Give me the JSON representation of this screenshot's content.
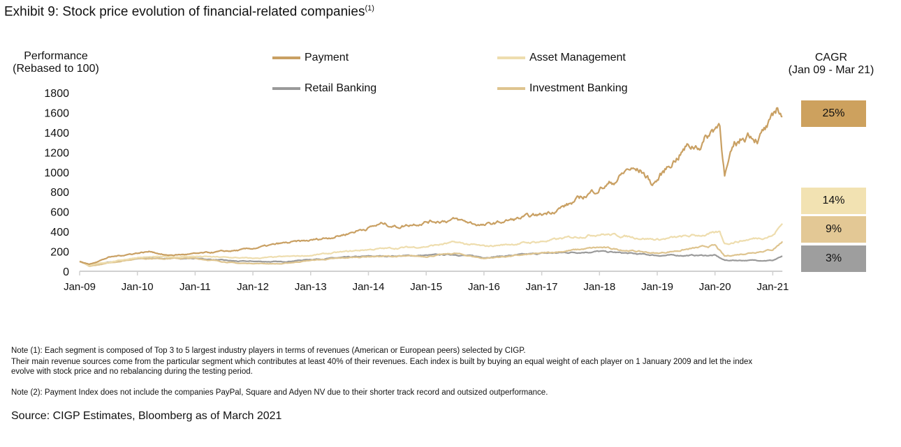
{
  "title": "Exhibit 9: Stock price evolution of financial-related companies",
  "title_footnote": "(1)",
  "chart_data": {
    "type": "line",
    "ylabel_line1": "Performance",
    "ylabel_line2": "(Rebased to 100)",
    "ylim": [
      0,
      1800
    ],
    "yticks": [
      "0",
      "200",
      "400",
      "600",
      "800",
      "1000",
      "1200",
      "1400",
      "1600",
      "1800"
    ],
    "xticks": [
      "Jan-09",
      "Jan-10",
      "Jan-11",
      "Jan-12",
      "Jan-13",
      "Jan-14",
      "Jan-15",
      "Jan-16",
      "Jan-17",
      "Jan-18",
      "Jan-19",
      "Jan-20",
      "Jan-21"
    ],
    "xlim": [
      "2009-01",
      "2021-03"
    ],
    "grid": false,
    "legend_position": "top",
    "series": [
      {
        "name": "Retail Banking",
        "color": "#9A9A9A",
        "points": [
          [
            "2009-01",
            100
          ],
          [
            "2009-03",
            60
          ],
          [
            "2010-01",
            130
          ],
          [
            "2011-01",
            130
          ],
          [
            "2011-10",
            100
          ],
          [
            "2012-01",
            100
          ],
          [
            "2012-07",
            95
          ],
          [
            "2013-01",
            120
          ],
          [
            "2014-01",
            150
          ],
          [
            "2015-01",
            160
          ],
          [
            "2015-07",
            170
          ],
          [
            "2016-01",
            140
          ],
          [
            "2017-01",
            180
          ],
          [
            "2018-01",
            200
          ],
          [
            "2019-01",
            160
          ],
          [
            "2020-01",
            160
          ],
          [
            "2020-03",
            110
          ],
          [
            "2021-01",
            110
          ],
          [
            "2021-03",
            150
          ]
        ]
      },
      {
        "name": "Investment Banking",
        "color": "#DEC48F",
        "points": [
          [
            "2009-01",
            100
          ],
          [
            "2009-03",
            50
          ],
          [
            "2010-01",
            130
          ],
          [
            "2011-01",
            130
          ],
          [
            "2011-10",
            80
          ],
          [
            "2012-01",
            80
          ],
          [
            "2012-07",
            75
          ],
          [
            "2013-01",
            110
          ],
          [
            "2014-01",
            150
          ],
          [
            "2015-01",
            150
          ],
          [
            "2015-07",
            180
          ],
          [
            "2016-01",
            130
          ],
          [
            "2017-01",
            180
          ],
          [
            "2018-01",
            240
          ],
          [
            "2019-01",
            180
          ],
          [
            "2020-01",
            260
          ],
          [
            "2020-03",
            150
          ],
          [
            "2021-01",
            220
          ],
          [
            "2021-03",
            300
          ]
        ]
      },
      {
        "name": "Asset Management",
        "color": "#EEDDAE",
        "points": [
          [
            "2009-01",
            100
          ],
          [
            "2009-03",
            60
          ],
          [
            "2010-01",
            140
          ],
          [
            "2011-01",
            150
          ],
          [
            "2012-01",
            130
          ],
          [
            "2013-01",
            160
          ],
          [
            "2014-01",
            220
          ],
          [
            "2015-01",
            250
          ],
          [
            "2015-07",
            290
          ],
          [
            "2016-01",
            250
          ],
          [
            "2017-01",
            300
          ],
          [
            "2018-01",
            380
          ],
          [
            "2019-01",
            320
          ],
          [
            "2020-01",
            380
          ],
          [
            "2020-02",
            390
          ],
          [
            "2020-03",
            280
          ],
          [
            "2021-01",
            360
          ],
          [
            "2021-03",
            480
          ]
        ]
      },
      {
        "name": "Payment",
        "color": "#C9A063",
        "points": [
          [
            "2009-01",
            100
          ],
          [
            "2009-03",
            70
          ],
          [
            "2009-07",
            140
          ],
          [
            "2010-01",
            185
          ],
          [
            "2010-04",
            200
          ],
          [
            "2010-07",
            160
          ],
          [
            "2011-01",
            175
          ],
          [
            "2011-07",
            200
          ],
          [
            "2011-10",
            210
          ],
          [
            "2012-01",
            230
          ],
          [
            "2012-07",
            280
          ],
          [
            "2013-01",
            310
          ],
          [
            "2013-07",
            360
          ],
          [
            "2014-01",
            440
          ],
          [
            "2014-04",
            480
          ],
          [
            "2014-07",
            450
          ],
          [
            "2015-01",
            500
          ],
          [
            "2015-07",
            520
          ],
          [
            "2016-01",
            460
          ],
          [
            "2016-07",
            520
          ],
          [
            "2017-01",
            570
          ],
          [
            "2017-07",
            680
          ],
          [
            "2018-01",
            840
          ],
          [
            "2018-04",
            900
          ],
          [
            "2018-07",
            1030
          ],
          [
            "2018-10",
            1000
          ],
          [
            "2018-12",
            880
          ],
          [
            "2019-01",
            920
          ],
          [
            "2019-04",
            1100
          ],
          [
            "2019-07",
            1250
          ],
          [
            "2019-10",
            1280
          ],
          [
            "2020-01",
            1450
          ],
          [
            "2020-02",
            1500
          ],
          [
            "2020-03",
            980
          ],
          [
            "2020-05",
            1250
          ],
          [
            "2020-08",
            1400
          ],
          [
            "2020-10",
            1350
          ],
          [
            "2021-01",
            1500
          ],
          [
            "2021-02",
            1650
          ],
          [
            "2021-03",
            1560
          ]
        ]
      }
    ]
  },
  "legend": {
    "payment": "Payment",
    "asset_management": "Asset Management",
    "retail_banking": "Retail Banking",
    "investment_banking": "Investment Banking"
  },
  "cagr": {
    "header_line1": "CAGR",
    "header_line2": "(Jan 09 - Mar 21)",
    "items": [
      {
        "value": "25%",
        "color": "#CDA15E"
      },
      {
        "value": "14%",
        "color": "#F2E2B2"
      },
      {
        "value": "9%",
        "color": "#E3C895"
      },
      {
        "value": "3%",
        "color": "#9E9E9E"
      }
    ]
  },
  "notes": {
    "note1_line1": "Note (1): Each segment is composed of Top 3 to 5 largest industry players in terms of revenues (American or European peers) selected by CIGP.",
    "note1_line2": "Their main revenue sources come from the particular segment which contributes at least 40% of their revenues. Each index is built by buying an equal weight of each player on 1 January 2009 and let the index",
    "note1_line3": "evolve with stock price and no rebalancing during the testing period.",
    "note2": "Note (2): Payment Index does not include the companies PayPal, Square and Adyen NV due to their shorter track record and outsized outperformance.",
    "source": "Source: CIGP Estimates, Bloomberg as of March 2021"
  }
}
